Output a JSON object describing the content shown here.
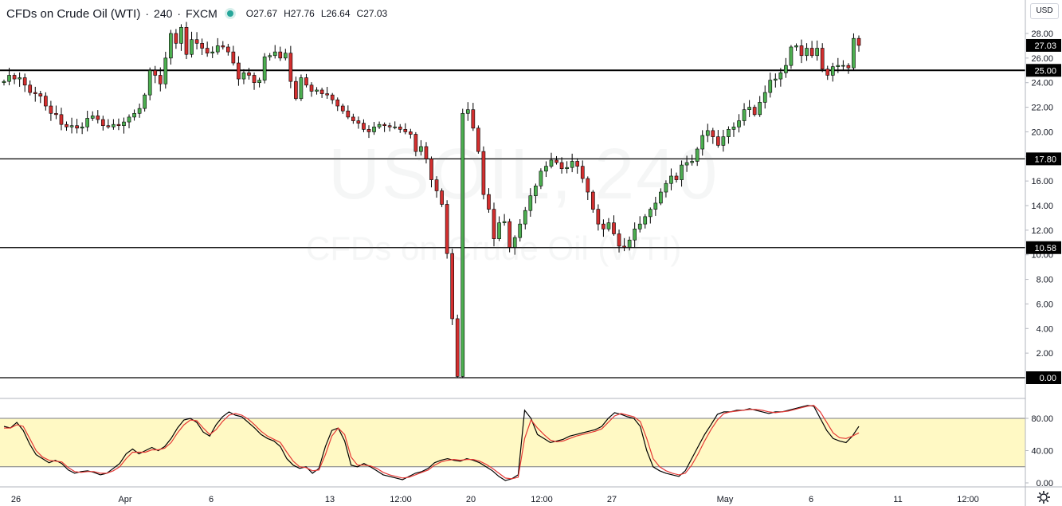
{
  "legend": {
    "symbol": "CFDs on Crude Oil (WTI)",
    "interval": "240",
    "exchange": "FXCM",
    "open_label": "O",
    "open": "27.67",
    "high_label": "H",
    "high": "27.76",
    "low_label": "L",
    "low": "26.64",
    "close_label": "C",
    "close": "27.03"
  },
  "currency": "USD",
  "watermark": {
    "ticker": "USOIL, 240",
    "name": "CFDs on Crude Oil (WTI)"
  },
  "colors": {
    "up": "#26a69a",
    "up_fill": "#4caf50",
    "down": "#ef5350",
    "down_fill": "#d32f2f",
    "stoch_k": "#000000",
    "stoch_d": "#e53935",
    "band": "#fff9c4"
  },
  "chart_data": [
    {
      "type": "candlestick",
      "ylim": [
        0,
        29
      ],
      "y_ticks": [
        "28.00",
        "26.00",
        "24.00",
        "22.00",
        "20.00",
        "18.00",
        "16.00",
        "14.00",
        "12.00",
        "10.00",
        "8.00",
        "6.00",
        "4.00",
        "2.00",
        "0.00"
      ],
      "price_labels": [
        {
          "value": 27.03,
          "label": "27.03",
          "kind": "current"
        },
        {
          "value": 25.0,
          "label": "25.00",
          "kind": "line"
        },
        {
          "value": 17.8,
          "label": "17.80",
          "kind": "line"
        },
        {
          "value": 10.58,
          "label": "10.58",
          "kind": "line"
        },
        {
          "value": 0.0,
          "label": "0.00",
          "kind": "line"
        }
      ],
      "horizontal_lines": [
        25.0,
        17.8,
        10.58,
        0.0
      ],
      "x_ticks": [
        "26",
        "Apr",
        "6",
        "13",
        "12:00",
        "20",
        "12:00",
        "27",
        "May",
        "6",
        "11",
        "12:00"
      ],
      "close_series": [
        24.1,
        24.6,
        24.3,
        24.4,
        23.8,
        23.2,
        23.1,
        22.9,
        22.1,
        21.5,
        21.4,
        20.6,
        20.4,
        20.5,
        20.3,
        20.4,
        21.1,
        21.3,
        21.0,
        20.5,
        20.4,
        20.6,
        20.5,
        20.8,
        21.2,
        21.5,
        21.9,
        23.0,
        25.0,
        24.6,
        23.9,
        26.0,
        28.0,
        27.2,
        28.5,
        26.3,
        27.5,
        27.2,
        26.8,
        26.4,
        26.5,
        27.0,
        26.9,
        26.5,
        25.6,
        24.3,
        24.8,
        24.6,
        24.0,
        24.2,
        26.1,
        26.2,
        26.5,
        26.0,
        26.4,
        24.1,
        22.7,
        24.4,
        23.8,
        23.3,
        23.4,
        23.1,
        23.0,
        22.6,
        22.1,
        21.7,
        21.2,
        20.9,
        20.7,
        20.2,
        20.0,
        20.4,
        20.6,
        20.5,
        20.4,
        20.4,
        20.2,
        20.0,
        19.8,
        18.4,
        18.8,
        17.8,
        16.1,
        15.2,
        14.1,
        10.1,
        4.8,
        0.1,
        21.5,
        21.8,
        20.3,
        18.4,
        14.9,
        13.7,
        11.3,
        12.6,
        12.7,
        10.6,
        11.4,
        12.5,
        13.6,
        14.8,
        15.6,
        16.8,
        17.2,
        17.7,
        17.5,
        17.0,
        17.1,
        17.6,
        17.2,
        16.2,
        15.1,
        13.7,
        12.5,
        12.1,
        12.6,
        11.7,
        10.7,
        10.6,
        11.2,
        12.1,
        12.5,
        13.1,
        13.7,
        14.2,
        15.1,
        15.8,
        16.4,
        16.1,
        17.3,
        17.5,
        17.6,
        18.6,
        19.7,
        20.1,
        19.6,
        18.9,
        19.6,
        20.2,
        20.4,
        20.9,
        21.8,
        22.0,
        21.4,
        22.4,
        23.2,
        24.2,
        24.3,
        24.8,
        25.4,
        26.9,
        27.0,
        26.2,
        26.8,
        26.2,
        26.8,
        25.1,
        24.6,
        25.3,
        25.4,
        25.4,
        25.2,
        27.6,
        27.03
      ]
    },
    {
      "type": "line",
      "indicator": "stochastic",
      "ylim": [
        0,
        100
      ],
      "band": [
        20,
        80
      ],
      "y_ticks": [
        "80.00",
        "40.00",
        "0.00"
      ],
      "series": [
        {
          "values": [
            70,
            68,
            75,
            65,
            48,
            35,
            30,
            25,
            28,
            24,
            16,
            12,
            14,
            15,
            13,
            10,
            12,
            18,
            24,
            36,
            42,
            36,
            40,
            44,
            40,
            45,
            55,
            68,
            78,
            80,
            75,
            63,
            58,
            72,
            82,
            88,
            84,
            82,
            75,
            68,
            60,
            55,
            52,
            45,
            30,
            22,
            18,
            20,
            12,
            18,
            45,
            65,
            68,
            52,
            22,
            20,
            24,
            20,
            15,
            10,
            8,
            6,
            4,
            8,
            12,
            14,
            18,
            25,
            28,
            30,
            28,
            27,
            30,
            28,
            25,
            20,
            15,
            8,
            3,
            5,
            10,
            90,
            80,
            60,
            55,
            50,
            52,
            54,
            58,
            60,
            62,
            64,
            66,
            70,
            80,
            87,
            85,
            82,
            80,
            70,
            40,
            20,
            15,
            12,
            10,
            8,
            15,
            30,
            45,
            60,
            72,
            85,
            88,
            88,
            90,
            90,
            92,
            90,
            88,
            86,
            88,
            88,
            90,
            92,
            94,
            96,
            95,
            80,
            65,
            55,
            52,
            50,
            58,
            70
          ]
        },
        {
          "values": [
            68,
            68,
            72,
            70,
            55,
            40,
            32,
            28,
            27,
            26,
            19,
            14,
            13,
            14,
            14,
            12,
            12,
            15,
            20,
            30,
            38,
            38,
            38,
            41,
            41,
            43,
            50,
            62,
            72,
            78,
            77,
            68,
            60,
            66,
            76,
            84,
            86,
            84,
            79,
            72,
            64,
            58,
            54,
            50,
            38,
            27,
            20,
            19,
            15,
            16,
            35,
            58,
            68,
            60,
            32,
            22,
            22,
            21,
            18,
            13,
            10,
            8,
            6,
            7,
            10,
            13,
            16,
            22,
            26,
            28,
            29,
            28,
            29,
            29,
            27,
            23,
            18,
            12,
            6,
            5,
            7,
            55,
            78,
            68,
            60,
            53,
            51,
            52,
            55,
            58,
            60,
            62,
            64,
            67,
            75,
            83,
            86,
            84,
            82,
            76,
            55,
            30,
            20,
            15,
            12,
            10,
            12,
            22,
            36,
            52,
            66,
            78,
            86,
            88,
            89,
            90,
            91,
            91,
            90,
            88,
            87,
            88,
            89,
            91,
            93,
            95,
            96,
            88,
            75,
            62,
            56,
            55,
            58,
            62
          ]
        }
      ]
    }
  ]
}
